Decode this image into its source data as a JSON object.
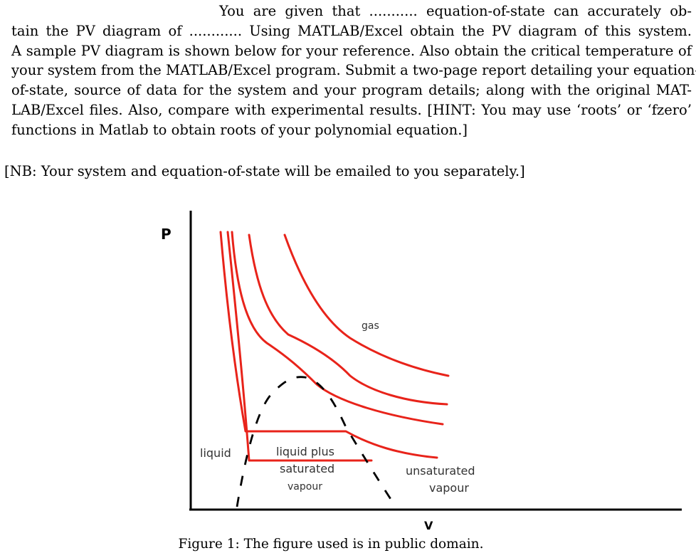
{
  "assignment": {
    "lines": [
      "You are given that ........... equation-of-state can accurately ob-",
      "tain the PV diagram of ............ Using MATLAB/Excel obtain the PV diagram of this system.",
      "A sample PV diagram is shown below for your reference. Also obtain the critical temperature of",
      "your system from the MATLAB/Excel program. Submit a two-page report detailing your equation-",
      "of-state, source of data for the system and your program details; along with the original MAT-",
      "LAB/Excel files. Also, compare with experimental results. [HINT: You may use ‘roots’ or ‘fzero’",
      "functions in Matlab to obtain roots of your polynomial equation.]"
    ],
    "note": "[NB: Your system and equation-of-state will be emailed to you separately.]"
  },
  "figure": {
    "y_axis_label": "P",
    "x_axis_label": "V",
    "region_labels": {
      "gas": "gas",
      "liquid": "liquid",
      "two_phase_1": "liquid plus",
      "two_phase_2": "saturated",
      "two_phase_3": "vapour",
      "vapour_1": "unsaturated",
      "vapour_2": "vapour"
    },
    "isotherm_color": "#e8231a",
    "dome_color": "#000000",
    "caption": "Figure 1: The figure used is in public domain."
  }
}
